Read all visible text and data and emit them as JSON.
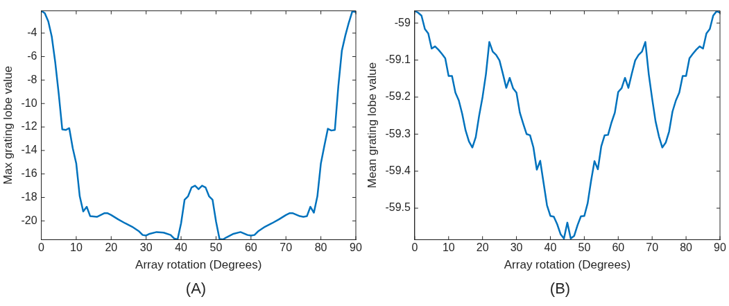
{
  "chart_data": [
    {
      "type": "line",
      "xlabel": "Array rotation (Degrees)",
      "ylabel": "Max grating lobe value",
      "annotations": [
        "(A)"
      ],
      "grid": false,
      "legend": false,
      "marker": "none",
      "line_style": "solid",
      "x": [
        0,
        1,
        2,
        3,
        4,
        5,
        6,
        7,
        8,
        9,
        10,
        11,
        12,
        13,
        14,
        16,
        18,
        19,
        20,
        22,
        24,
        26,
        28,
        29,
        30,
        31,
        33,
        35,
        37,
        38,
        39,
        40,
        41,
        42,
        43,
        44,
        45,
        46,
        47,
        48,
        49,
        50,
        51,
        52,
        53,
        55,
        57,
        59,
        60,
        61,
        62,
        64,
        66,
        68,
        70,
        71,
        72,
        74,
        75,
        76,
        77,
        78,
        79,
        80,
        81,
        82,
        83,
        84,
        85,
        86,
        87,
        88,
        89,
        90
      ],
      "xlim": [
        0,
        90
      ],
      "xticks": [
        0,
        10,
        20,
        30,
        40,
        50,
        60,
        70,
        80,
        90
      ],
      "ylim": [
        -21.6,
        -2.1
      ],
      "yticks": [
        -20,
        -18,
        -16,
        -14,
        -12,
        -10,
        -8,
        -6,
        -4
      ],
      "series": [
        {
          "color": "#0072bd",
          "values": [
            -2.1,
            -2.3,
            -3.0,
            -4.3,
            -6.5,
            -9.2,
            -12.2,
            -12.25,
            -12.1,
            -13.8,
            -15.1,
            -17.9,
            -19.2,
            -18.8,
            -19.6,
            -19.65,
            -19.35,
            -19.35,
            -19.5,
            -19.87,
            -20.2,
            -20.5,
            -20.9,
            -21.2,
            -21.25,
            -21.1,
            -20.95,
            -21.0,
            -21.2,
            -21.5,
            -21.58,
            -20.2,
            -18.2,
            -17.9,
            -17.15,
            -17.0,
            -17.3,
            -17.0,
            -17.15,
            -17.9,
            -18.2,
            -20.05,
            -21.55,
            -21.58,
            -21.4,
            -21.1,
            -20.95,
            -21.2,
            -21.25,
            -21.2,
            -20.9,
            -20.5,
            -20.2,
            -19.87,
            -19.5,
            -19.35,
            -19.35,
            -19.6,
            -19.65,
            -19.6,
            -18.8,
            -19.3,
            -17.9,
            -15.1,
            -13.6,
            -12.15,
            -12.3,
            -12.25,
            -8.5,
            -5.5,
            -4.2,
            -3.1,
            -2.15,
            -2.2
          ]
        }
      ]
    },
    {
      "type": "line",
      "xlabel": "Array rotation (Degrees)",
      "ylabel": "Mean grating lobe value",
      "annotations": [
        "(B)"
      ],
      "grid": false,
      "legend": false,
      "marker": "none",
      "line_style": "solid",
      "x": [
        0,
        1,
        2,
        3,
        4,
        5,
        6,
        7,
        8,
        9,
        10,
        11,
        12,
        13,
        14,
        15,
        16,
        17,
        18,
        19,
        20,
        21,
        22,
        23,
        24,
        25,
        26,
        27,
        28,
        29,
        30,
        31,
        32,
        33,
        34,
        35,
        36,
        37,
        38,
        39,
        40,
        41,
        42,
        43,
        44,
        45,
        46,
        47,
        48,
        49,
        50,
        51,
        52,
        53,
        54,
        55,
        56,
        57,
        58,
        59,
        60,
        61,
        62,
        63,
        64,
        65,
        66,
        67,
        68,
        69,
        70,
        71,
        72,
        73,
        74,
        75,
        76,
        77,
        78,
        79,
        80,
        81,
        82,
        83,
        84,
        85,
        86,
        87,
        88,
        89,
        90
      ],
      "xlim": [
        0,
        90
      ],
      "xticks": [
        0,
        10,
        20,
        30,
        40,
        50,
        60,
        70,
        80,
        90
      ],
      "ylim": [
        -59.585,
        -58.967
      ],
      "yticks": [
        -59.5,
        -59.4,
        -59.3,
        -59.2,
        -59.1,
        -59
      ],
      "series": [
        {
          "color": "#0072bd",
          "values": [
            -58.967,
            -58.972,
            -58.98,
            -59.016,
            -59.028,
            -59.069,
            -59.063,
            -59.072,
            -59.083,
            -59.095,
            -59.143,
            -59.143,
            -59.188,
            -59.209,
            -59.245,
            -59.29,
            -59.32,
            -59.336,
            -59.308,
            -59.25,
            -59.2,
            -59.138,
            -59.051,
            -59.077,
            -59.086,
            -59.101,
            -59.137,
            -59.175,
            -59.148,
            -59.176,
            -59.188,
            -59.242,
            -59.272,
            -59.3,
            -59.303,
            -59.336,
            -59.396,
            -59.372,
            -59.432,
            -59.492,
            -59.521,
            -59.523,
            -59.543,
            -59.57,
            -59.582,
            -59.539,
            -59.582,
            -59.575,
            -59.546,
            -59.522,
            -59.521,
            -59.486,
            -59.426,
            -59.373,
            -59.395,
            -59.333,
            -59.303,
            -59.302,
            -59.269,
            -59.242,
            -59.186,
            -59.176,
            -59.148,
            -59.175,
            -59.137,
            -59.101,
            -59.086,
            -59.077,
            -59.051,
            -59.138,
            -59.204,
            -59.265,
            -59.306,
            -59.336,
            -59.323,
            -59.293,
            -59.239,
            -59.209,
            -59.188,
            -59.143,
            -59.143,
            -59.095,
            -59.083,
            -59.072,
            -59.063,
            -59.069,
            -59.028,
            -59.016,
            -58.98,
            -58.968,
            -58.972
          ]
        }
      ]
    }
  ]
}
